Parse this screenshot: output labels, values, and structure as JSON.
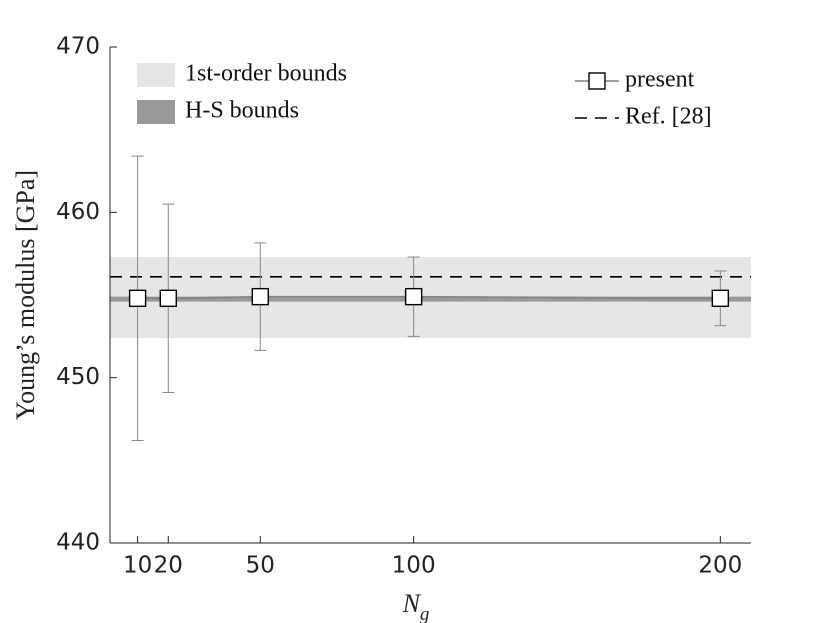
{
  "chart_data": {
    "type": "errorbar",
    "xlabel": "N",
    "xlabel_subscript": "g",
    "ylabel": "Young’s modulus [GPa]",
    "xlim": [
      1,
      210
    ],
    "xticks": [
      10,
      20,
      50,
      100,
      200
    ],
    "ylim": [
      440,
      470
    ],
    "yticks": [
      440,
      450,
      460,
      470
    ],
    "series": [
      {
        "name": "present",
        "color": "#000000",
        "line_color": "#808080",
        "x": [
          10,
          20,
          50,
          100,
          200
        ],
        "values": [
          454.8,
          454.8,
          454.9,
          454.9,
          454.8
        ],
        "errors": [
          8.6,
          5.7,
          3.25,
          2.4,
          1.65
        ]
      }
    ],
    "bands": [
      {
        "name": "1st-order bounds",
        "color": "#e6e6e6",
        "range": [
          452.4,
          457.3
        ]
      },
      {
        "name": "H-S bounds",
        "color": "#999999",
        "range": [
          454.6,
          454.9
        ]
      }
    ],
    "reference_lines": [
      {
        "name": "Ref. [28]",
        "value": 456.1,
        "color": "#000000"
      }
    ]
  }
}
